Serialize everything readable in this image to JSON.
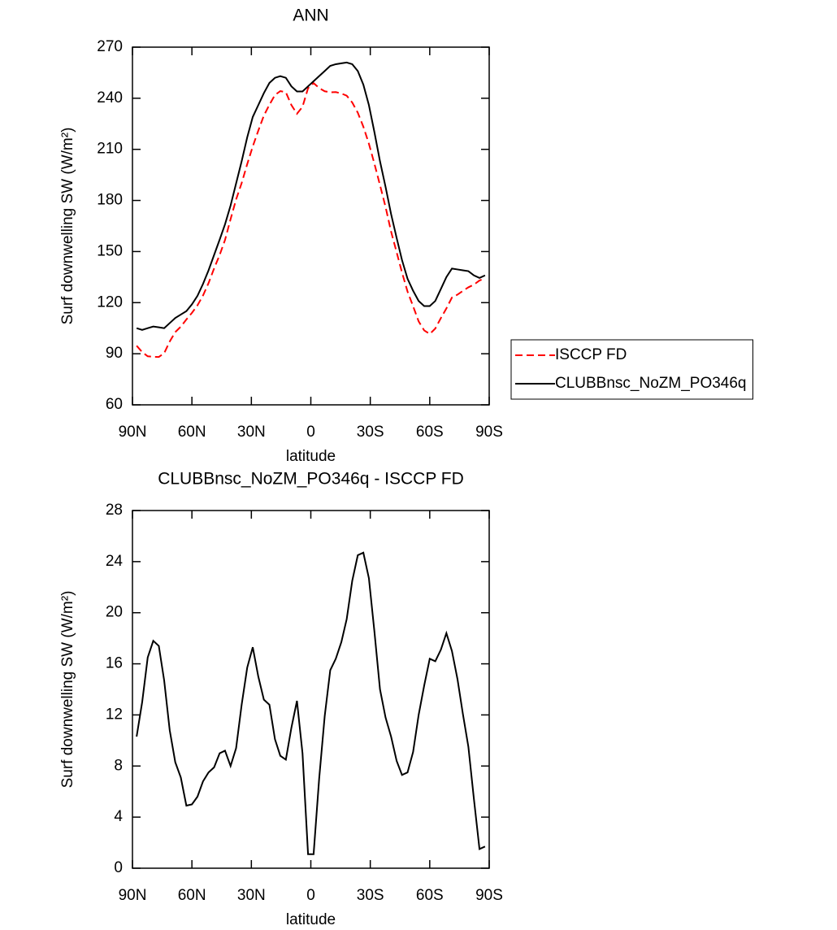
{
  "chart_data": [
    {
      "type": "line",
      "title": "ANN",
      "xlabel": "latitude",
      "ylabel": "Surf downwelling SW (W/m²)",
      "x": [
        87.9,
        85.1,
        82.3,
        79.5,
        76.7,
        74.0,
        71.2,
        68.4,
        65.6,
        62.8,
        60.0,
        57.2,
        54.4,
        51.6,
        48.8,
        46.0,
        43.3,
        40.5,
        37.7,
        34.9,
        32.1,
        29.3,
        26.5,
        23.7,
        20.9,
        18.1,
        15.4,
        12.6,
        9.8,
        7.0,
        4.2,
        1.4,
        -1.4,
        -4.2,
        -7.0,
        -9.8,
        -12.6,
        -15.4,
        -18.1,
        -20.9,
        -23.7,
        -26.5,
        -29.3,
        -32.1,
        -34.9,
        -37.7,
        -40.5,
        -43.3,
        -46.0,
        -48.8,
        -51.6,
        -54.4,
        -57.2,
        -60.0,
        -62.8,
        -65.6,
        -68.4,
        -71.2,
        -74.0,
        -76.7,
        -79.5,
        -82.3,
        -85.1,
        -87.9
      ],
      "series": [
        {
          "name": "ISCCP FD",
          "color": "#ff0000",
          "line_style": "dashed",
          "values": [
            94.7,
            91,
            88.5,
            88.2,
            88.1,
            90.3,
            97.2,
            102.7,
            105.9,
            110.1,
            114,
            118.4,
            124.2,
            131.5,
            140.1,
            148,
            156.8,
            169,
            180.6,
            190.2,
            201.3,
            211.7,
            221,
            229.8,
            236.2,
            241.9,
            244.2,
            243.5,
            236,
            230.9,
            235,
            245.9,
            248.9,
            246,
            244.1,
            243.5,
            243.6,
            242.8,
            241.5,
            237.5,
            231.5,
            223.3,
            213.3,
            201.5,
            189,
            176.2,
            161.7,
            149.6,
            137.7,
            126.5,
            117.9,
            109,
            103.7,
            101.6,
            104.8,
            110.9,
            116.6,
            123,
            124.7,
            126.9,
            129,
            130.6,
            133,
            134.3
          ]
        },
        {
          "name": "CLUBBnsc_NoZM_PO346q",
          "color": "#000000",
          "line_style": "solid",
          "values": [
            105,
            104,
            105,
            106,
            105.5,
            105,
            108,
            111,
            113,
            115,
            119,
            124,
            131,
            139,
            148,
            157,
            166,
            177,
            190,
            203,
            217,
            229,
            236,
            243,
            249,
            252,
            253,
            252,
            247,
            244,
            244,
            247,
            250,
            253,
            256,
            259,
            260,
            260.5,
            261,
            260,
            256,
            248,
            236,
            220,
            203,
            188,
            172,
            158,
            145,
            134,
            127,
            121,
            118,
            118,
            121,
            128,
            135,
            140,
            139.5,
            139,
            138.5,
            136,
            134.5,
            136
          ]
        }
      ],
      "xlim": [
        90,
        -90
      ],
      "xticks": [
        {
          "value": 90,
          "label": "90N"
        },
        {
          "value": 60,
          "label": "60N"
        },
        {
          "value": 30,
          "label": "30N"
        },
        0,
        {
          "value": -30,
          "label": "30S"
        },
        {
          "value": -60,
          "label": "60S"
        },
        {
          "value": -90,
          "label": "90S"
        }
      ],
      "ylim": [
        60,
        270
      ],
      "yticks": [
        60,
        90,
        120,
        150,
        180,
        210,
        240,
        270
      ],
      "legend": "right"
    },
    {
      "type": "line",
      "title": "CLUBBnsc_NoZM_PO346q - ISCCP FD",
      "xlabel": "latitude",
      "ylabel": "Surf downwelling SW (W/m²)",
      "x": [
        87.9,
        85.1,
        82.3,
        79.5,
        76.7,
        74.0,
        71.2,
        68.4,
        65.6,
        62.8,
        60.0,
        57.2,
        54.4,
        51.6,
        48.8,
        46.0,
        43.3,
        40.5,
        37.7,
        34.9,
        32.1,
        29.3,
        26.5,
        23.7,
        20.9,
        18.1,
        15.4,
        12.6,
        9.8,
        7.0,
        4.2,
        1.4,
        -1.4,
        -4.2,
        -7.0,
        -9.8,
        -12.6,
        -15.4,
        -18.1,
        -20.9,
        -23.7,
        -26.5,
        -29.3,
        -32.1,
        -34.9,
        -37.7,
        -40.5,
        -43.3,
        -46.0,
        -48.8,
        -51.6,
        -54.4,
        -57.2,
        -60.0,
        -62.8,
        -65.6,
        -68.4,
        -71.2,
        -74.0,
        -76.7,
        -79.5,
        -82.3,
        -85.1,
        -87.9
      ],
      "series": [
        {
          "color": "#000000",
          "line_style": "solid",
          "values": [
            10.3,
            13,
            16.5,
            17.8,
            17.4,
            14.7,
            10.8,
            8.3,
            7.1,
            4.9,
            5.0,
            5.6,
            6.8,
            7.5,
            7.9,
            9.0,
            9.2,
            8.0,
            9.4,
            12.8,
            15.7,
            17.3,
            15.0,
            13.2,
            12.8,
            10.1,
            8.8,
            8.5,
            11.0,
            13.1,
            9.0,
            1.1,
            1.1,
            7.0,
            11.9,
            15.5,
            16.4,
            17.7,
            19.5,
            22.5,
            24.5,
            24.7,
            22.7,
            18.5,
            14.0,
            11.8,
            10.3,
            8.4,
            7.3,
            7.5,
            9.1,
            12.0,
            14.3,
            16.4,
            16.2,
            17.1,
            18.4,
            17.0,
            14.8,
            12.1,
            9.5,
            5.4,
            1.5,
            1.7
          ]
        }
      ],
      "xlim": [
        90,
        -90
      ],
      "xticks": [
        {
          "value": 90,
          "label": "90N"
        },
        {
          "value": 60,
          "label": "60N"
        },
        {
          "value": 30,
          "label": "30N"
        },
        0,
        {
          "value": -30,
          "label": "30S"
        },
        {
          "value": -60,
          "label": "60S"
        },
        {
          "value": -90,
          "label": "90S"
        }
      ],
      "ylim": [
        0,
        28
      ],
      "yticks": [
        0,
        4,
        8,
        12,
        16,
        20,
        24,
        28
      ]
    }
  ]
}
